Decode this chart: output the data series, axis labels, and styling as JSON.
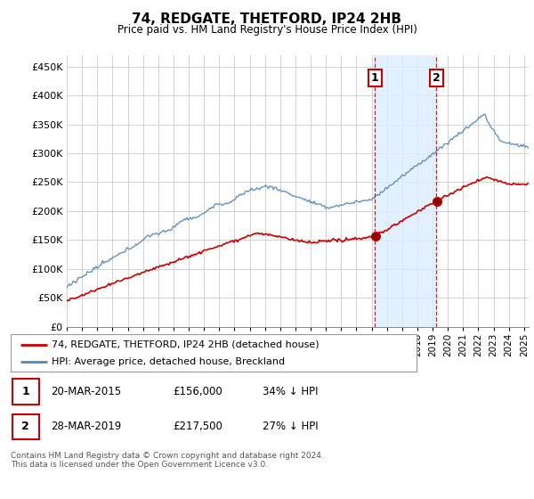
{
  "title": "74, REDGATE, THETFORD, IP24 2HB",
  "subtitle": "Price paid vs. HM Land Registry's House Price Index (HPI)",
  "ylabel_vals": [
    0,
    50000,
    100000,
    150000,
    200000,
    250000,
    300000,
    350000,
    400000,
    450000
  ],
  "ylabel_labels": [
    "£0",
    "£50K",
    "£100K",
    "£150K",
    "£200K",
    "£250K",
    "£300K",
    "£350K",
    "£400K",
    "£450K"
  ],
  "xlim_start": 1995.0,
  "xlim_end": 2025.3,
  "ylim": [
    0,
    470000
  ],
  "sale1_x": 2015.22,
  "sale1_y": 156000,
  "sale2_x": 2019.24,
  "sale2_y": 217500,
  "legend_line1": "74, REDGATE, THETFORD, IP24 2HB (detached house)",
  "legend_line2": "HPI: Average price, detached house, Breckland",
  "table_row1": [
    "1",
    "20-MAR-2015",
    "£156,000",
    "34% ↓ HPI"
  ],
  "table_row2": [
    "2",
    "28-MAR-2019",
    "£217,500",
    "27% ↓ HPI"
  ],
  "footer": "Contains HM Land Registry data © Crown copyright and database right 2024.\nThis data is licensed under the Open Government Licence v3.0.",
  "red_color": "#cc0000",
  "blue_color": "#5588bb",
  "shade_color": "#ddeeff",
  "grid_color": "#cccccc",
  "x_ticks": [
    1995,
    1996,
    1997,
    1998,
    1999,
    2000,
    2001,
    2002,
    2003,
    2004,
    2005,
    2006,
    2007,
    2008,
    2009,
    2010,
    2011,
    2012,
    2013,
    2014,
    2015,
    2016,
    2017,
    2018,
    2019,
    2020,
    2021,
    2022,
    2023,
    2024,
    2025
  ]
}
